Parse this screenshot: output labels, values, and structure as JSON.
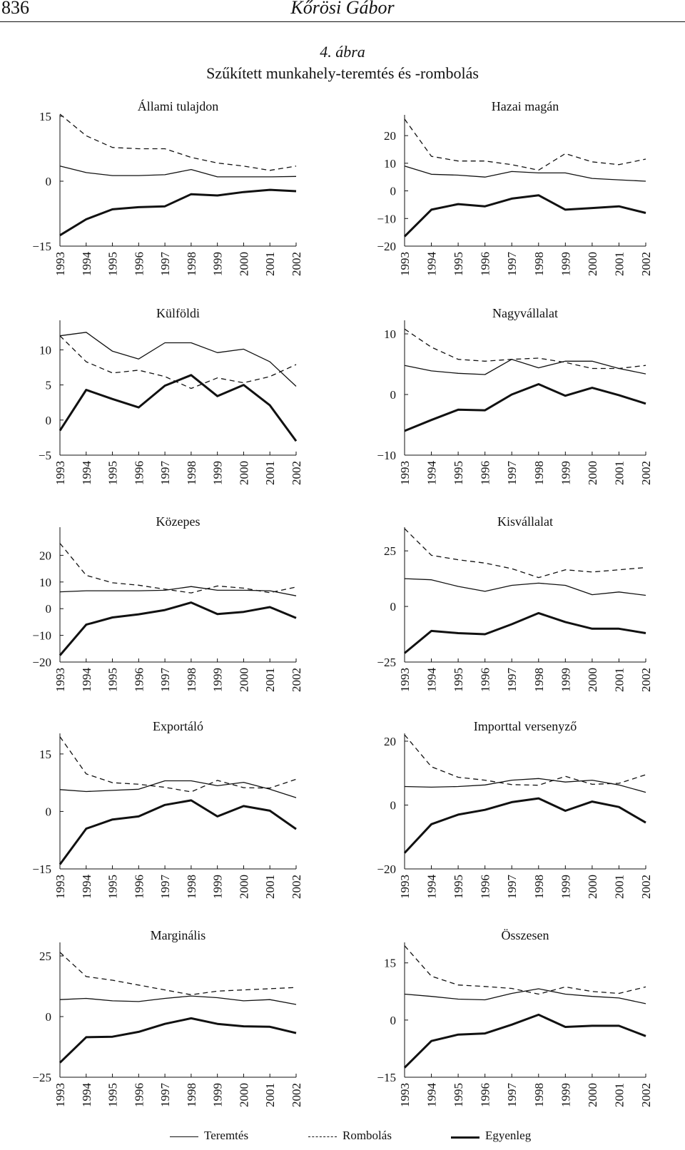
{
  "header": {
    "page_number": "836",
    "running_head": "Kőrösi Gábor"
  },
  "figure": {
    "label": "4. ábra",
    "title": "Szűkített munkahely-teremtés és -rombolás"
  },
  "legend": [
    {
      "name": "Teremtés",
      "style": "thin"
    },
    {
      "name": "Rombolás",
      "style": "dashed"
    },
    {
      "name": "Egyenleg",
      "style": "thick"
    }
  ],
  "chart_data": [
    {
      "type": "line",
      "title": "Állami tulajdon",
      "categories": [
        "1993",
        "1994",
        "1995",
        "1996",
        "1997",
        "1998",
        "1999",
        "2000",
        "2001",
        "2002"
      ],
      "ylim": [
        -15,
        15
      ],
      "yticks": [
        -15,
        0,
        15
      ],
      "series": [
        {
          "name": "Teremtés",
          "values": [
            3.5,
            2,
            1.3,
            1.3,
            1.5,
            2.7,
            1,
            1,
            1,
            1.1
          ]
        },
        {
          "name": "Rombolás",
          "values": [
            15.5,
            10.5,
            7.8,
            7.5,
            7.5,
            5.5,
            4.2,
            3.5,
            2.5,
            3.5
          ]
        },
        {
          "name": "Egyenleg",
          "values": [
            -12.5,
            -8.8,
            -6.5,
            -6,
            -5.8,
            -3,
            -3.3,
            -2.5,
            -2,
            -2.3
          ]
        }
      ]
    },
    {
      "type": "line",
      "title": "Hazai magán",
      "categories": [
        "1993",
        "1994",
        "1995",
        "1996",
        "1997",
        "1998",
        "1999",
        "2000",
        "2001",
        "2002"
      ],
      "ylim": [
        -20,
        27
      ],
      "yticks": [
        -20,
        -10,
        0,
        10,
        20
      ],
      "series": [
        {
          "name": "Teremtés",
          "values": [
            9,
            6,
            5.7,
            5,
            7,
            6.5,
            6.5,
            4.5,
            4,
            3.5
          ]
        },
        {
          "name": "Rombolás",
          "values": [
            26,
            12.5,
            10.8,
            10.8,
            9.5,
            7.5,
            13.5,
            10.5,
            9.5,
            11.5
          ]
        },
        {
          "name": "Egyenleg",
          "values": [
            -16.5,
            -6.8,
            -4.8,
            -5.6,
            -2.8,
            -1.6,
            -6.8,
            -6.2,
            -5.6,
            -8
          ]
        }
      ]
    },
    {
      "type": "line",
      "title": "Külföldi",
      "categories": [
        "1993",
        "1994",
        "1995",
        "1996",
        "1997",
        "1998",
        "1999",
        "2000",
        "2001",
        "2002"
      ],
      "ylim": [
        -5,
        14
      ],
      "yticks": [
        -5,
        0,
        5,
        10
      ],
      "series": [
        {
          "name": "Teremtés",
          "values": [
            12,
            12.5,
            9.8,
            8.7,
            11,
            11,
            9.6,
            10.1,
            8.3,
            4.8
          ]
        },
        {
          "name": "Rombolás",
          "values": [
            12,
            8.3,
            6.7,
            7.1,
            6.2,
            4.5,
            6,
            5.3,
            6.2,
            7.9
          ]
        },
        {
          "name": "Egyenleg",
          "values": [
            -1.5,
            4.3,
            3,
            1.8,
            4.9,
            6.4,
            3.4,
            5,
            2.1,
            -3
          ]
        }
      ]
    },
    {
      "type": "line",
      "title": "Nagyvállalat",
      "categories": [
        "1993",
        "1994",
        "1995",
        "1996",
        "1997",
        "1998",
        "1999",
        "2000",
        "2001",
        "2002"
      ],
      "ylim": [
        -10,
        12
      ],
      "yticks": [
        -10,
        0,
        10
      ],
      "series": [
        {
          "name": "Teremtés",
          "values": [
            4.8,
            3.9,
            3.5,
            3.3,
            5.8,
            4.4,
            5.5,
            5.5,
            4.3,
            3.4
          ]
        },
        {
          "name": "Rombolás",
          "values": [
            10.8,
            7.8,
            5.8,
            5.5,
            5.8,
            6,
            5.3,
            4.3,
            4.3,
            4.8
          ]
        },
        {
          "name": "Egyenleg",
          "values": [
            -6,
            -4.2,
            -2.5,
            -2.6,
            0,
            1.7,
            -0.2,
            1.1,
            -0.1,
            -1.5
          ]
        }
      ]
    },
    {
      "type": "line",
      "title": "Közepes",
      "categories": [
        "1993",
        "1994",
        "1995",
        "1996",
        "1997",
        "1998",
        "1999",
        "2000",
        "2001",
        "2002"
      ],
      "ylim": [
        -20,
        30
      ],
      "yticks": [
        -20,
        -10,
        0,
        10,
        20
      ],
      "series": [
        {
          "name": "Teremtés",
          "values": [
            6.3,
            6.7,
            6.7,
            6.7,
            6.9,
            8.3,
            6.9,
            6.9,
            6.7,
            4.8
          ]
        },
        {
          "name": "Rombolás",
          "values": [
            24.5,
            12.5,
            9.7,
            8.8,
            7.3,
            5.9,
            8.5,
            7.7,
            6,
            8.1
          ]
        },
        {
          "name": "Egyenleg",
          "values": [
            -17.5,
            -6,
            -3.3,
            -2.1,
            -0.5,
            2.3,
            -2,
            -1.2,
            0.6,
            -3.5
          ]
        }
      ]
    },
    {
      "type": "line",
      "title": "Kisvállalat",
      "categories": [
        "1993",
        "1994",
        "1995",
        "1996",
        "1997",
        "1998",
        "1999",
        "2000",
        "2001",
        "2002"
      ],
      "ylim": [
        -25,
        35
      ],
      "yticks": [
        -25,
        0,
        25
      ],
      "series": [
        {
          "name": "Teremtés",
          "values": [
            12.5,
            12,
            9,
            6.8,
            9.5,
            10.5,
            9.5,
            5.3,
            6.5,
            5
          ]
        },
        {
          "name": "Rombolás",
          "values": [
            35,
            23,
            21,
            19.5,
            17,
            13,
            16.5,
            15.5,
            16.5,
            17.5
          ]
        },
        {
          "name": "Egyenleg",
          "values": [
            -21,
            -11,
            -12,
            -12.5,
            -8,
            -3,
            -7,
            -10,
            -10,
            -12
          ]
        }
      ]
    },
    {
      "type": "line",
      "title": "Exportáló",
      "categories": [
        "1993",
        "1994",
        "1995",
        "1996",
        "1997",
        "1998",
        "1999",
        "2000",
        "2001",
        "2002"
      ],
      "ylim": [
        -15,
        20
      ],
      "yticks": [
        -15,
        0,
        15
      ],
      "series": [
        {
          "name": "Teremtés",
          "values": [
            5.7,
            5.2,
            5.5,
            5.8,
            8,
            8,
            6.7,
            7.6,
            5.8,
            3.6
          ]
        },
        {
          "name": "Rombolás",
          "values": [
            19.5,
            9.8,
            7.5,
            7.1,
            6.3,
            5.1,
            8.1,
            6.2,
            6.1,
            8.4
          ]
        },
        {
          "name": "Egyenleg",
          "values": [
            -13.8,
            -4.5,
            -2.1,
            -1.3,
            1.7,
            2.9,
            -1.3,
            1.4,
            0.2,
            -4.6
          ]
        }
      ]
    },
    {
      "type": "line",
      "title": "Importtal versenyző",
      "categories": [
        "1993",
        "1994",
        "1995",
        "1996",
        "1997",
        "1998",
        "1999",
        "2000",
        "2001",
        "2002"
      ],
      "ylim": [
        -20,
        22
      ],
      "yticks": [
        -20,
        0,
        20
      ],
      "series": [
        {
          "name": "Teremtés",
          "values": [
            5.8,
            5.6,
            5.8,
            6.3,
            7.8,
            8.3,
            7.2,
            7.8,
            6.3,
            4
          ]
        },
        {
          "name": "Rombolás",
          "values": [
            22,
            12,
            8.7,
            7.8,
            6.4,
            6.2,
            9,
            6.5,
            6.8,
            9.5
          ]
        },
        {
          "name": "Egyenleg",
          "values": [
            -15,
            -6,
            -3,
            -1.5,
            0.9,
            2.1,
            -1.8,
            1.1,
            -0.6,
            -5.5
          ]
        }
      ]
    },
    {
      "type": "line",
      "title": "Marginális",
      "categories": [
        "1993",
        "1994",
        "1995",
        "1996",
        "1997",
        "1998",
        "1999",
        "2000",
        "2001",
        "2002"
      ],
      "ylim": [
        -25,
        30
      ],
      "yticks": [
        -25,
        0,
        25
      ],
      "series": [
        {
          "name": "Teremtés",
          "values": [
            7,
            7.5,
            6.5,
            6.2,
            7.5,
            8.5,
            7.8,
            6.5,
            7,
            5
          ]
        },
        {
          "name": "Rombolás",
          "values": [
            26.5,
            16.5,
            15,
            13,
            11,
            9,
            10.5,
            11,
            11.5,
            12
          ]
        },
        {
          "name": "Egyenleg",
          "values": [
            -19,
            -8.5,
            -8.3,
            -6.3,
            -3,
            -0.7,
            -3,
            -4,
            -4.2,
            -6.8
          ]
        }
      ]
    },
    {
      "type": "line",
      "title": "Összesen",
      "categories": [
        "1993",
        "1994",
        "1995",
        "1996",
        "1997",
        "1998",
        "1999",
        "2000",
        "2001",
        "2002"
      ],
      "ylim": [
        -15,
        20
      ],
      "yticks": [
        -15,
        0,
        15
      ],
      "series": [
        {
          "name": "Teremtés",
          "values": [
            6.8,
            6.2,
            5.5,
            5.3,
            7,
            8.2,
            6.8,
            6.2,
            5.8,
            4.3
          ]
        },
        {
          "name": "Rombolás",
          "values": [
            19.5,
            11.5,
            9.2,
            8.8,
            8.3,
            6.8,
            8.7,
            7.5,
            7,
            8.7
          ]
        },
        {
          "name": "Egyenleg",
          "values": [
            -12.5,
            -5.5,
            -3.8,
            -3.5,
            -1.2,
            1.4,
            -1.8,
            -1.5,
            -1.5,
            -4.2
          ]
        }
      ]
    }
  ]
}
